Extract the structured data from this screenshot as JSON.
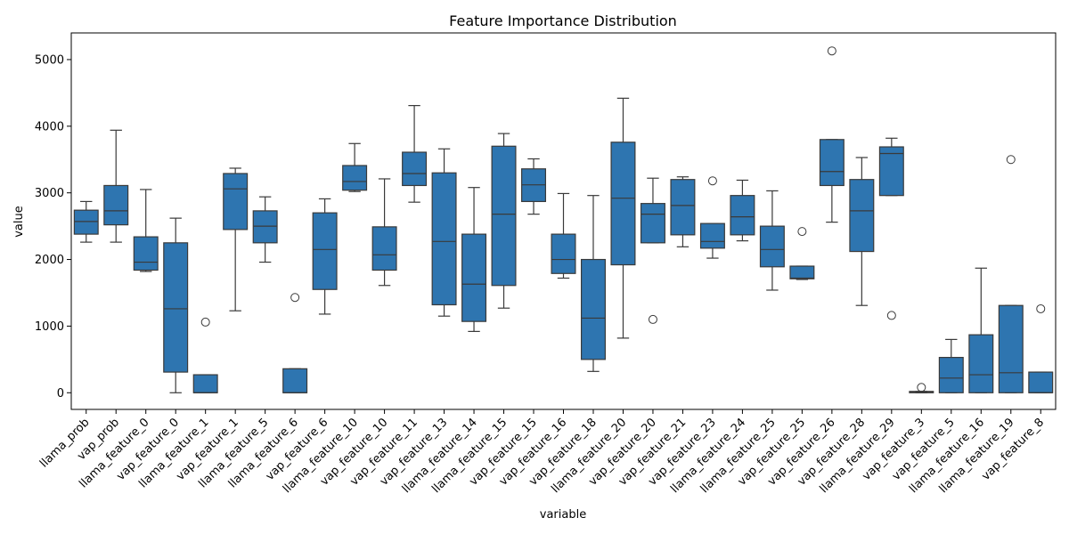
{
  "chart_data": {
    "type": "box",
    "title": "Feature Importance Distribution",
    "xlabel": "variable",
    "ylabel": "value",
    "ylim": [
      -250,
      5400
    ],
    "yticks": [
      0,
      1000,
      2000,
      3000,
      4000,
      5000
    ],
    "grid": false,
    "box_color": "#2e75b0",
    "line_color": "#3a3a3a",
    "categories": [
      "llama_prob",
      "vap_prob",
      "llama_feature_0",
      "vap_feature_0",
      "llama_feature_1",
      "vap_feature_1",
      "llama_feature_5",
      "llama_feature_6",
      "vap_feature_6",
      "llama_feature_10",
      "vap_feature_10",
      "vap_feature_11",
      "vap_feature_13",
      "llama_feature_14",
      "llama_feature_15",
      "vap_feature_15",
      "vap_feature_16",
      "vap_feature_18",
      "llama_feature_20",
      "vap_feature_20",
      "vap_feature_21",
      "vap_feature_23",
      "llama_feature_24",
      "llama_feature_25",
      "vap_feature_25",
      "vap_feature_26",
      "vap_feature_28",
      "llama_feature_29",
      "vap_feature_3",
      "vap_feature_5",
      "llama_feature_16",
      "llama_feature_19",
      "vap_feature_8"
    ],
    "boxes": [
      {
        "low": 2260,
        "q1": 2380,
        "median": 2570,
        "q3": 2740,
        "high": 2870,
        "outliers": []
      },
      {
        "low": 2260,
        "q1": 2520,
        "median": 2730,
        "q3": 3110,
        "high": 3940,
        "outliers": []
      },
      {
        "low": 1820,
        "q1": 1840,
        "median": 1960,
        "q3": 2340,
        "high": 3050,
        "outliers": []
      },
      {
        "low": 0,
        "q1": 310,
        "median": 1260,
        "q3": 2250,
        "high": 2620,
        "outliers": []
      },
      {
        "low": 0,
        "q1": 0,
        "median": 0,
        "q3": 270,
        "high": 270,
        "outliers": [
          1060
        ]
      },
      {
        "low": 1230,
        "q1": 2450,
        "median": 3060,
        "q3": 3290,
        "high": 3370,
        "outliers": []
      },
      {
        "low": 1960,
        "q1": 2250,
        "median": 2500,
        "q3": 2730,
        "high": 2940,
        "outliers": []
      },
      {
        "low": 0,
        "q1": 0,
        "median": 0,
        "q3": 360,
        "high": 360,
        "outliers": [
          1430
        ]
      },
      {
        "low": 1180,
        "q1": 1550,
        "median": 2150,
        "q3": 2700,
        "high": 2910,
        "outliers": []
      },
      {
        "low": 3020,
        "q1": 3040,
        "median": 3170,
        "q3": 3410,
        "high": 3740,
        "outliers": []
      },
      {
        "low": 1610,
        "q1": 1840,
        "median": 2070,
        "q3": 2490,
        "high": 3210,
        "outliers": []
      },
      {
        "low": 2860,
        "q1": 3110,
        "median": 3290,
        "q3": 3610,
        "high": 4310,
        "outliers": []
      },
      {
        "low": 1150,
        "q1": 1320,
        "median": 2270,
        "q3": 3300,
        "high": 3660,
        "outliers": []
      },
      {
        "low": 920,
        "q1": 1070,
        "median": 1630,
        "q3": 2380,
        "high": 3080,
        "outliers": []
      },
      {
        "low": 1270,
        "q1": 1610,
        "median": 2680,
        "q3": 3700,
        "high": 3890,
        "outliers": []
      },
      {
        "low": 2680,
        "q1": 2870,
        "median": 3120,
        "q3": 3360,
        "high": 3510,
        "outliers": []
      },
      {
        "low": 1720,
        "q1": 1790,
        "median": 2000,
        "q3": 2380,
        "high": 2990,
        "outliers": []
      },
      {
        "low": 320,
        "q1": 500,
        "median": 1120,
        "q3": 2000,
        "high": 2960,
        "outliers": []
      },
      {
        "low": 820,
        "q1": 1920,
        "median": 2920,
        "q3": 3760,
        "high": 4420,
        "outliers": []
      },
      {
        "low": 2250,
        "q1": 2250,
        "median": 2680,
        "q3": 2840,
        "high": 3220,
        "outliers": [
          1100
        ]
      },
      {
        "low": 2190,
        "q1": 2370,
        "median": 2810,
        "q3": 3200,
        "high": 3240,
        "outliers": []
      },
      {
        "low": 2020,
        "q1": 2170,
        "median": 2270,
        "q3": 2540,
        "high": 2540,
        "outliers": [
          3180
        ]
      },
      {
        "low": 2280,
        "q1": 2370,
        "median": 2640,
        "q3": 2960,
        "high": 3190,
        "outliers": []
      },
      {
        "low": 1540,
        "q1": 1890,
        "median": 2150,
        "q3": 2500,
        "high": 3030,
        "outliers": []
      },
      {
        "low": 1700,
        "q1": 1710,
        "median": 1720,
        "q3": 1900,
        "high": 1900,
        "outliers": [
          2420
        ]
      },
      {
        "low": 2560,
        "q1": 3110,
        "median": 3320,
        "q3": 3800,
        "high": 3800,
        "outliers": [
          5130
        ]
      },
      {
        "low": 1310,
        "q1": 2120,
        "median": 2730,
        "q3": 3200,
        "high": 3530,
        "outliers": []
      },
      {
        "low": 2960,
        "q1": 2960,
        "median": 3590,
        "q3": 3690,
        "high": 3820,
        "outliers": [
          1160
        ]
      },
      {
        "low": 0,
        "q1": 0,
        "median": 10,
        "q3": 20,
        "high": 20,
        "outliers": [
          80
        ]
      },
      {
        "low": 0,
        "q1": 0,
        "median": 220,
        "q3": 530,
        "high": 800,
        "outliers": []
      },
      {
        "low": 0,
        "q1": 0,
        "median": 270,
        "q3": 870,
        "high": 1870,
        "outliers": []
      },
      {
        "low": 0,
        "q1": 0,
        "median": 300,
        "q3": 1310,
        "high": 1310,
        "outliers": [
          3500
        ]
      },
      {
        "low": 0,
        "q1": 0,
        "median": 0,
        "q3": 310,
        "high": 310,
        "outliers": [
          1260
        ]
      }
    ]
  }
}
